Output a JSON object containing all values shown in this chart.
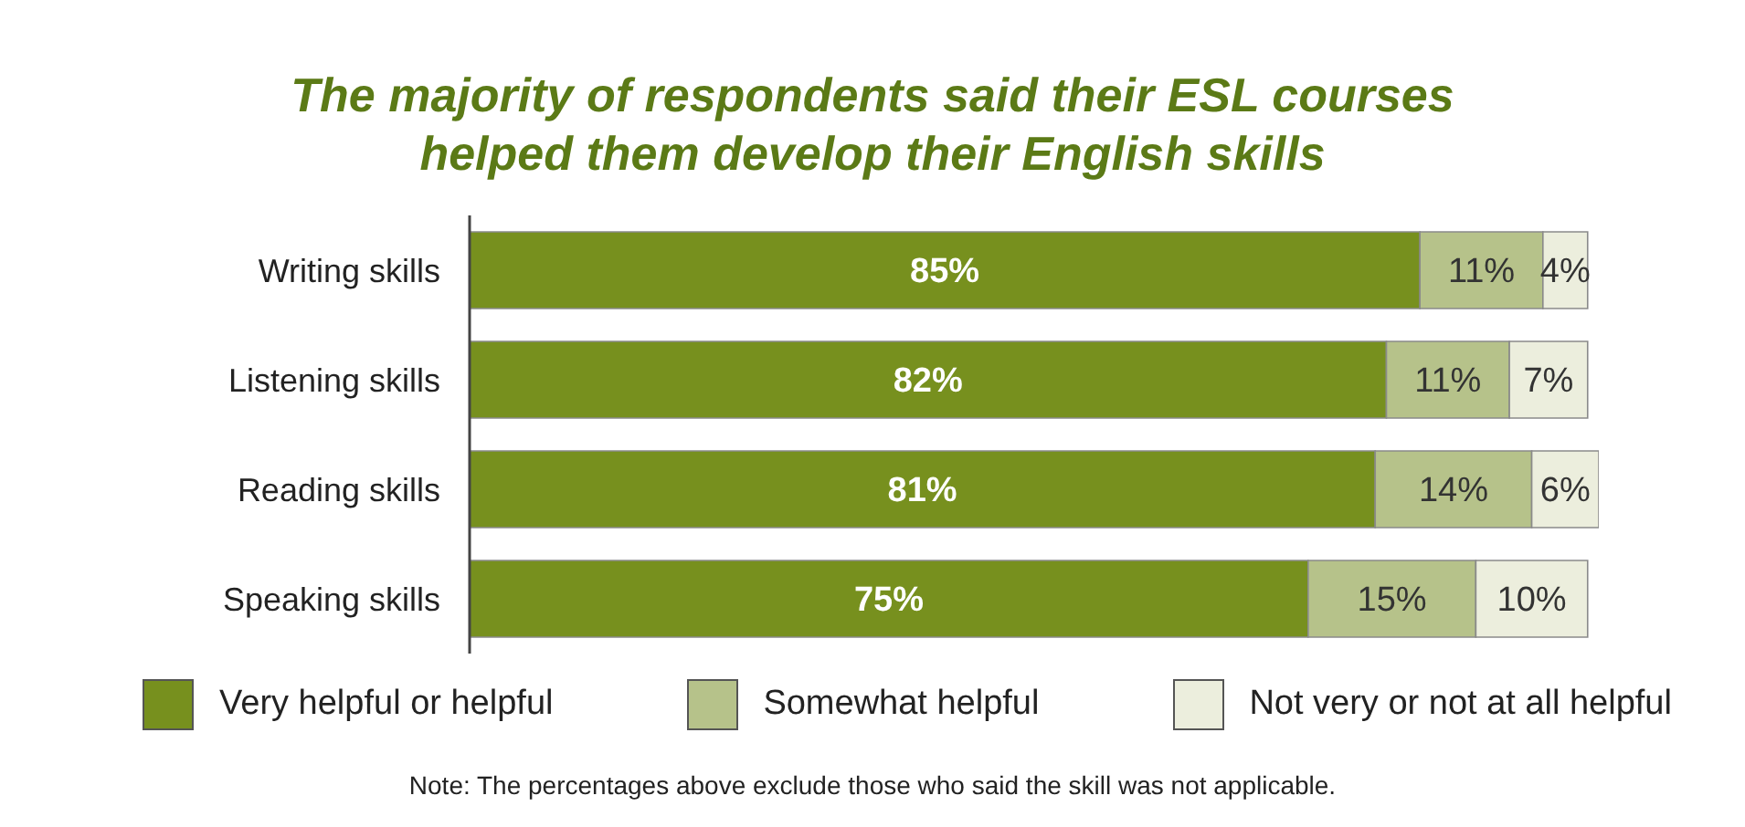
{
  "chart_data": {
    "type": "bar",
    "orientation": "horizontal",
    "stacked": true,
    "title": "The majority of respondents said their ESL courses helped them develop their English skills",
    "categories": [
      "Writing skills",
      "Listening skills",
      "Reading skills",
      "Speaking skills"
    ],
    "series": [
      {
        "name": "Very helpful or helpful",
        "color": "#77901e",
        "values": [
          85,
          82,
          81,
          75
        ],
        "value_labels": [
          "85%",
          "82%",
          "81%",
          "75%"
        ]
      },
      {
        "name": "Somewhat helpful",
        "color": "#b6c28a",
        "values": [
          11,
          11,
          14,
          15
        ],
        "value_labels": [
          "11%",
          "11%",
          "14%",
          "15%"
        ]
      },
      {
        "name": "Not very or not at all helpful",
        "color": "#eceedd",
        "values": [
          4,
          7,
          6,
          10
        ],
        "value_labels": [
          "4%",
          "7%",
          "6%",
          "10%"
        ]
      }
    ],
    "legend": "bottom",
    "annotations": [
      "Note: The percentages above exclude those who said the skill was not applicable."
    ]
  }
}
